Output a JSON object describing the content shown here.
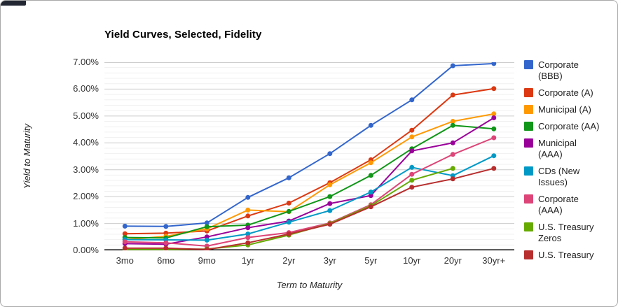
{
  "chart": {
    "title": "Yield Curves, Selected, Fidelity",
    "x_axis_title": "Term to Maturity",
    "y_axis_title": "Yield to Maturity"
  },
  "chart_data": {
    "type": "line",
    "title": "Yield Curves, Selected, Fidelity",
    "xlabel": "Term to Maturity",
    "ylabel": "Yield to Maturity",
    "categories": [
      "3mo",
      "6mo",
      "9mo",
      "1yr",
      "2yr",
      "3yr",
      "5yr",
      "10yr",
      "20yr",
      "30yr+"
    ],
    "y_ticks": [
      "0.00%",
      "1.00%",
      "2.00%",
      "3.00%",
      "4.00%",
      "5.00%",
      "6.00%",
      "7.00%"
    ],
    "ylim": [
      0,
      7
    ],
    "y_minor_step": 0.2,
    "grid": true,
    "point_markers": true,
    "legend_position": "right",
    "series": [
      {
        "name": "Corporate (BBB)",
        "color": "#3366cc",
        "values": [
          0.9,
          0.89,
          1.02,
          1.97,
          2.7,
          3.6,
          4.65,
          5.6,
          6.87,
          6.95
        ]
      },
      {
        "name": "Corporate (A)",
        "color": "#dc3912",
        "values": [
          0.62,
          0.64,
          0.72,
          1.28,
          1.76,
          2.52,
          3.37,
          4.47,
          5.78,
          6.02
        ]
      },
      {
        "name": "Municipal (A)",
        "color": "#ff9900",
        "values": [
          0.4,
          0.52,
          0.8,
          1.5,
          1.44,
          2.44,
          3.26,
          4.22,
          4.8,
          5.08
        ]
      },
      {
        "name": "Corporate (AA)",
        "color": "#109618",
        "values": [
          0.48,
          0.46,
          0.88,
          0.94,
          1.45,
          2.0,
          2.79,
          3.78,
          4.65,
          4.52
        ]
      },
      {
        "name": "Municipal (AAA)",
        "color": "#990099",
        "values": [
          0.25,
          0.23,
          0.5,
          0.84,
          1.09,
          1.74,
          2.04,
          3.7,
          4.0,
          4.93
        ]
      },
      {
        "name": "CDs (New Issues)",
        "color": "#0099c6",
        "values": [
          0.4,
          0.39,
          0.38,
          0.61,
          1.05,
          1.48,
          2.17,
          3.09,
          2.78,
          3.52
        ]
      },
      {
        "name": "Corporate (AAA)",
        "color": "#dd4477",
        "values": [
          0.32,
          0.28,
          0.16,
          0.48,
          0.66,
          1.02,
          1.7,
          2.83,
          3.57,
          4.19
        ]
      },
      {
        "name": "U.S. Treasury Zeros",
        "color": "#66aa00",
        "values": [
          0.03,
          0.03,
          0.05,
          0.2,
          0.57,
          1.0,
          1.66,
          2.61,
          3.05,
          null
        ]
      },
      {
        "name": "U.S. Treasury",
        "color": "#b82e2e",
        "values": [
          0.08,
          0.08,
          0.03,
          0.28,
          0.61,
          0.97,
          1.62,
          2.35,
          2.66,
          3.05
        ]
      }
    ]
  },
  "colors": {
    "major_grid": "#cccccc",
    "minor_grid": "#f0f0f0",
    "baseline": "#000000",
    "card_border": "#a9a9a9",
    "background": "#ffffff"
  }
}
